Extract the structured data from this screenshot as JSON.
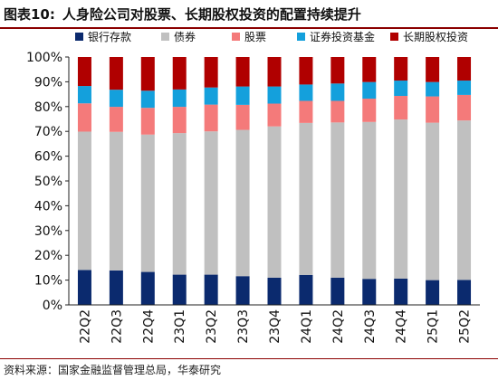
{
  "header": {
    "prefix": "图表10:",
    "title": "人身险公司对股票、长期股权投资的配置持续提升"
  },
  "footer": {
    "source": "资料来源：国家金融监督管理总局，华泰研究"
  },
  "chart_data": {
    "type": "bar",
    "stacked": true,
    "percent": true,
    "categories": [
      "22Q2",
      "22Q3",
      "22Q4",
      "23Q1",
      "23Q2",
      "23Q3",
      "23Q4",
      "24Q1",
      "24Q2",
      "24Q3",
      "24Q4",
      "25Q1",
      "25Q2"
    ],
    "series": [
      {
        "name": "银行存款",
        "color": "#0b2a6e",
        "values": [
          14.1,
          13.9,
          13.3,
          12.2,
          12.2,
          11.6,
          11.0,
          12.1,
          11.0,
          10.5,
          10.6,
          10.0,
          10.1
        ]
      },
      {
        "name": "债券",
        "color": "#c0c0c0",
        "values": [
          55.8,
          55.9,
          55.4,
          57.1,
          57.8,
          59.0,
          61.0,
          61.3,
          62.6,
          63.3,
          64.2,
          63.5,
          64.3
        ]
      },
      {
        "name": "股票",
        "color": "#f47a7a",
        "values": [
          11.4,
          10.1,
          10.8,
          10.6,
          10.8,
          10.1,
          9.2,
          8.9,
          8.7,
          9.4,
          9.5,
          10.6,
          10.3
        ]
      },
      {
        "name": "证券投资基金",
        "color": "#14a0dc",
        "values": [
          7.0,
          6.9,
          6.9,
          7.0,
          6.9,
          7.4,
          6.9,
          6.6,
          7.0,
          6.7,
          6.2,
          5.8,
          5.8
        ]
      },
      {
        "name": "长期股权投资",
        "color": "#b00000",
        "values": [
          11.7,
          13.2,
          13.6,
          13.1,
          12.3,
          11.9,
          11.9,
          11.1,
          10.7,
          10.1,
          9.5,
          10.1,
          9.5
        ]
      }
    ],
    "yticks": [
      "0%",
      "10%",
      "20%",
      "30%",
      "40%",
      "50%",
      "60%",
      "70%",
      "80%",
      "90%",
      "100%"
    ],
    "ylim": [
      0,
      100
    ],
    "xlabel": "",
    "ylabel": "",
    "grid": false,
    "legend_position": "top"
  }
}
